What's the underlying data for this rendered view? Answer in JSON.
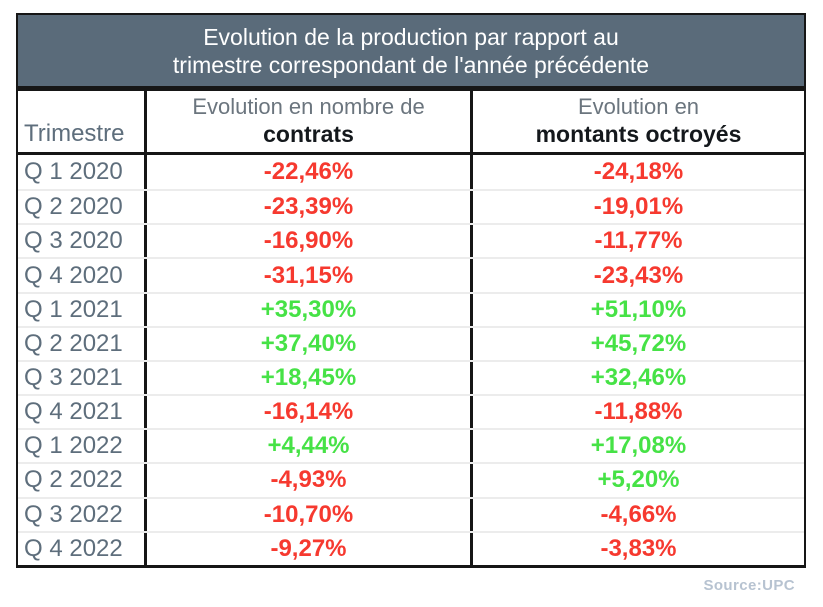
{
  "title": {
    "line1": "Evolution de la production par rapport au",
    "line2": "trimestre correspondant de l'année précédente"
  },
  "columns": {
    "trimestre": "Trimestre",
    "contrats_line1": "Evolution en nombre de",
    "contrats_line2": "contrats",
    "montants_line1": "Evolution en",
    "montants_line2": "montants octroyés"
  },
  "rows": [
    {
      "quarter": "Q 1 2020",
      "contrats": "-22,46%",
      "montants": "-24,18%"
    },
    {
      "quarter": "Q 2 2020",
      "contrats": "-23,39%",
      "montants": "-19,01%"
    },
    {
      "quarter": "Q 3 2020",
      "contrats": "-16,90%",
      "montants": "-11,77%"
    },
    {
      "quarter": "Q 4 2020",
      "contrats": "-31,15%",
      "montants": "-23,43%"
    },
    {
      "quarter": "Q 1 2021",
      "contrats": "+35,30%",
      "montants": "+51,10%"
    },
    {
      "quarter": "Q 2 2021",
      "contrats": "+37,40%",
      "montants": "+45,72%"
    },
    {
      "quarter": "Q 3 2021",
      "contrats": "+18,45%",
      "montants": "+32,46%"
    },
    {
      "quarter": "Q 4 2021",
      "contrats": "-16,14%",
      "montants": "-11,88%"
    },
    {
      "quarter": "Q 1 2022",
      "contrats": "+4,44%",
      "montants": "+17,08%"
    },
    {
      "quarter": "Q 2 2022",
      "contrats": "-4,93%",
      "montants": "+5,20%"
    },
    {
      "quarter": "Q 3 2022",
      "contrats": "-10,70%",
      "montants": "-4,66%"
    },
    {
      "quarter": "Q 4 2022",
      "contrats": "-9,27%",
      "montants": "-3,83%"
    }
  ],
  "source": "Source:UPC",
  "colors": {
    "header_bg": "#5a6b7a",
    "title_text": "#ffffff",
    "subhead": "#6b757e",
    "label": "#5e6e7c",
    "negative": "#f6392f",
    "positive": "#46e246",
    "source": "#b7c3d1"
  },
  "chart_data": {
    "type": "table",
    "title": "Evolution de la production par rapport au trimestre correspondant de l'année précédente",
    "categories": [
      "Q 1 2020",
      "Q 2 2020",
      "Q 3 2020",
      "Q 4 2020",
      "Q 1 2021",
      "Q 2 2021",
      "Q 3 2021",
      "Q 4 2021",
      "Q 1 2022",
      "Q 2 2022",
      "Q 3 2022",
      "Q 4 2022"
    ],
    "series": [
      {
        "name": "Evolution en nombre de contrats",
        "values": [
          -22.46,
          -23.39,
          -16.9,
          -31.15,
          35.3,
          37.4,
          18.45,
          -16.14,
          4.44,
          -4.93,
          -10.7,
          -9.27
        ]
      },
      {
        "name": "Evolution en montants octroyés",
        "values": [
          -24.18,
          -19.01,
          -11.77,
          -23.43,
          51.1,
          45.72,
          32.46,
          -11.88,
          17.08,
          5.2,
          -4.66,
          -3.83
        ]
      }
    ],
    "unit": "%",
    "value_color_rule": "positive=green, negative=red",
    "source": "Source:UPC"
  }
}
